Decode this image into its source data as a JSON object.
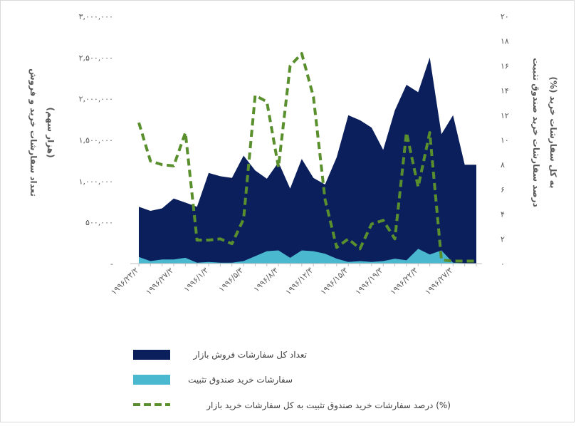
{
  "chart_data": {
    "type": "area",
    "title": "",
    "ylabel_left": "تعداد سفارشات خرید و فروش",
    "ylabel_left_unit": "(هزار سهم)",
    "ylabel_right": "درصد سفارشات خرید صندوق تثبیت",
    "ylabel_right_2": "(%) به کل سفارشات خرید",
    "ylim_left": [
      0,
      3000000
    ],
    "ylim_right": [
      0,
      20
    ],
    "y_ticks_left": [
      "-",
      "۵۰۰,۰۰۰",
      "۱,۰۰۰,۰۰۰",
      "۱,۵۰۰,۰۰۰",
      "۲,۰۰۰,۰۰۰",
      "۲,۵۰۰,۰۰۰",
      "۳,۰۰۰,۰۰۰"
    ],
    "y_ticks_right": [
      "۰",
      "۲",
      "۴",
      "۶",
      "۸",
      "۱۰",
      "۱۲",
      "۱۴",
      "۱۶",
      "۱۸",
      "۲۰"
    ],
    "x_ticks": [
      "۱۹۹۶/۲۳/۲",
      "۱۹۹۶/۲۷/۲",
      "۱۹۹۶/۱/۳",
      "۱۹۹۶/۵/۳",
      "۱۹۹۶/۸/۳",
      "۱۹۹۶/۱۲/۳",
      "۱۹۹۶/۱۵/۳",
      "۱۹۹۶/۱۹/۳",
      "۱۹۹۶/۲۲/۳",
      "۱۹۹۶/۲۷/۳"
    ],
    "x_tick_positions": [
      0,
      3,
      6,
      9,
      12,
      15,
      18,
      21,
      24,
      27
    ],
    "n_points": 30,
    "series": [
      {
        "name": "تعداد کل سفارشات فروش بازار",
        "type": "area",
        "color": "#0b1f5c",
        "values": [
          690000,
          640000,
          670000,
          790000,
          740000,
          690000,
          1100000,
          1060000,
          1040000,
          1310000,
          1130000,
          1030000,
          1230000,
          910000,
          1270000,
          1040000,
          960000,
          1290000,
          1800000,
          1740000,
          1650000,
          1380000,
          1860000,
          2170000,
          2080000,
          2500000,
          1570000,
          1800000,
          1200000,
          1200000
        ]
      },
      {
        "name": "سفارشات خرید صندوق تثبیت",
        "type": "area",
        "color": "#4ab9d0",
        "values": [
          80000,
          30000,
          50000,
          50000,
          70000,
          10000,
          20000,
          10000,
          10000,
          30000,
          90000,
          150000,
          160000,
          70000,
          160000,
          150000,
          120000,
          60000,
          20000,
          30000,
          20000,
          30000,
          60000,
          40000,
          180000,
          110000,
          160000,
          10000,
          5000,
          5000
        ]
      },
      {
        "name": "درصد سفارشات خرید صندوق تثبیت به کل سفارشات خرید بازار (%)",
        "type": "line",
        "color": "#5a8f2e",
        "values": [
          11.4,
          8.3,
          8.0,
          7.9,
          10.6,
          1.9,
          1.9,
          2.0,
          1.6,
          3.6,
          13.6,
          13.1,
          7.8,
          16.0,
          17.0,
          13.5,
          5.2,
          1.3,
          2.0,
          1.2,
          3.2,
          3.5,
          2.0,
          10.6,
          6.2,
          10.6,
          0.3,
          0.2,
          0.2,
          0.2
        ]
      }
    ],
    "legend_position": "bottom",
    "grid": false
  }
}
